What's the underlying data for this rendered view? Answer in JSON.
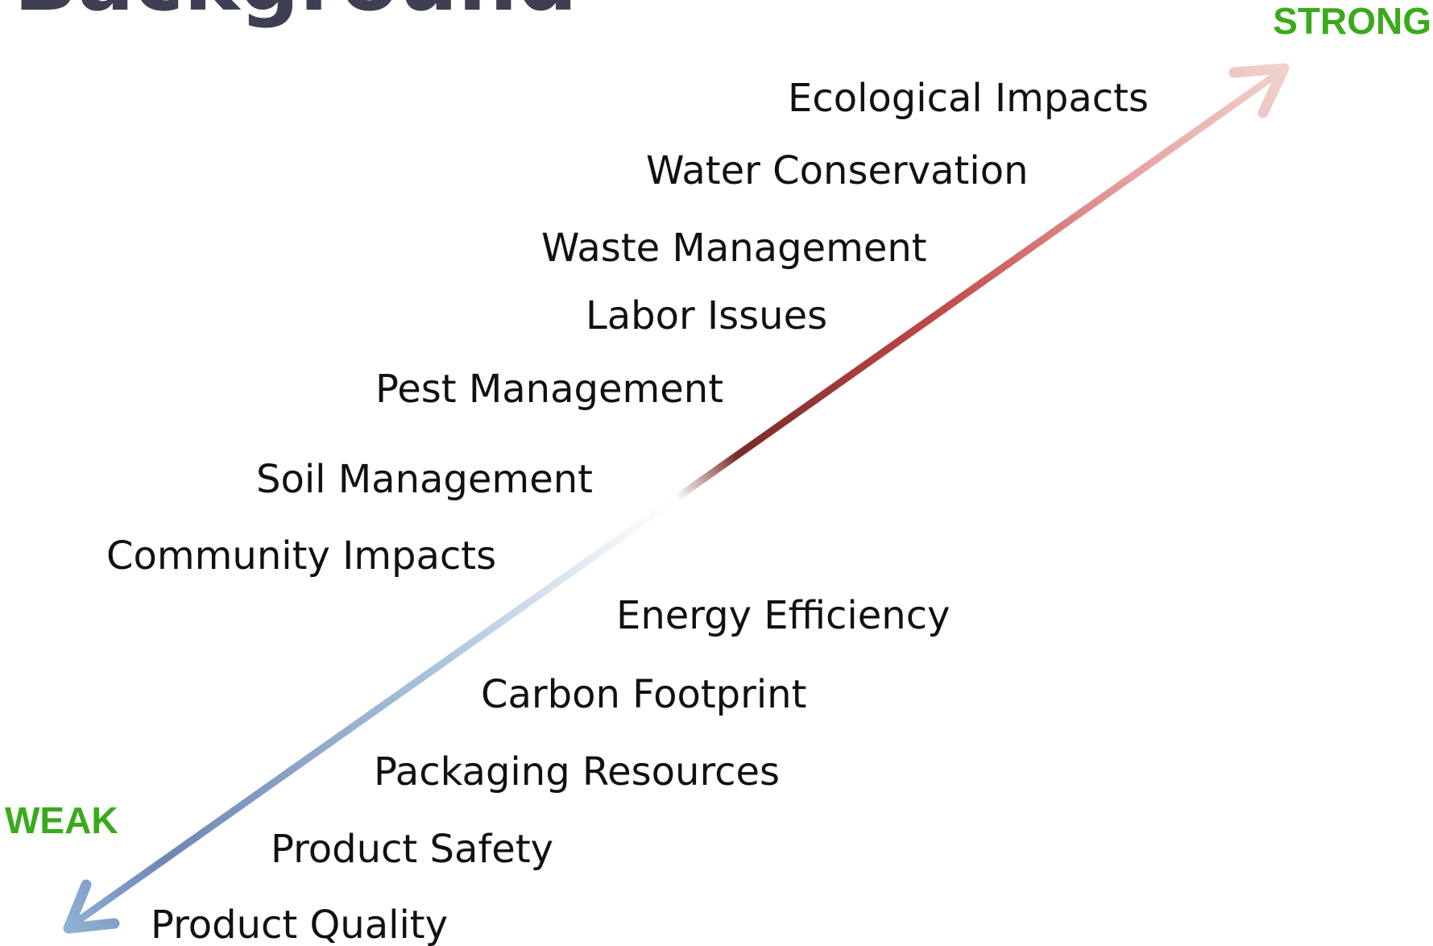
{
  "title": "Background",
  "strong_label": "STRONG",
  "weak_label": "WEAK",
  "items": [
    "Ecological Impacts",
    "Water Conservation",
    "Waste Management",
    "Labor Issues",
    "Pest Management",
    "Soil Management",
    "Community Impacts",
    "Energy Efficiency",
    "Carbon Footprint",
    "Packaging Resources",
    "Product Safety",
    "Product Quality"
  ]
}
